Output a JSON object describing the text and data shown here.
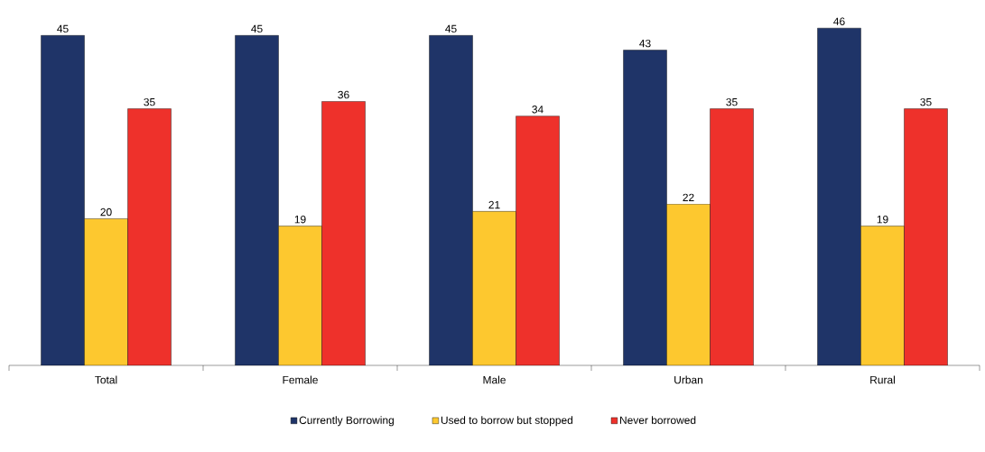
{
  "chart_data": {
    "type": "bar",
    "categories": [
      "Total",
      "Female",
      "Male",
      "Urban",
      "Rural"
    ],
    "series": [
      {
        "name": "Currently Borrowing",
        "color": "#1f3468",
        "values": [
          45,
          45,
          45,
          43,
          46
        ]
      },
      {
        "name": "Used to borrow but stopped",
        "color": "#fdc82f",
        "values": [
          20,
          19,
          21,
          22,
          19
        ]
      },
      {
        "name": "Never borrowed",
        "color": "#ee312b",
        "values": [
          35,
          36,
          34,
          35,
          35
        ]
      }
    ],
    "data_labels": true,
    "legend": "bottom",
    "tick_labels": "x"
  }
}
